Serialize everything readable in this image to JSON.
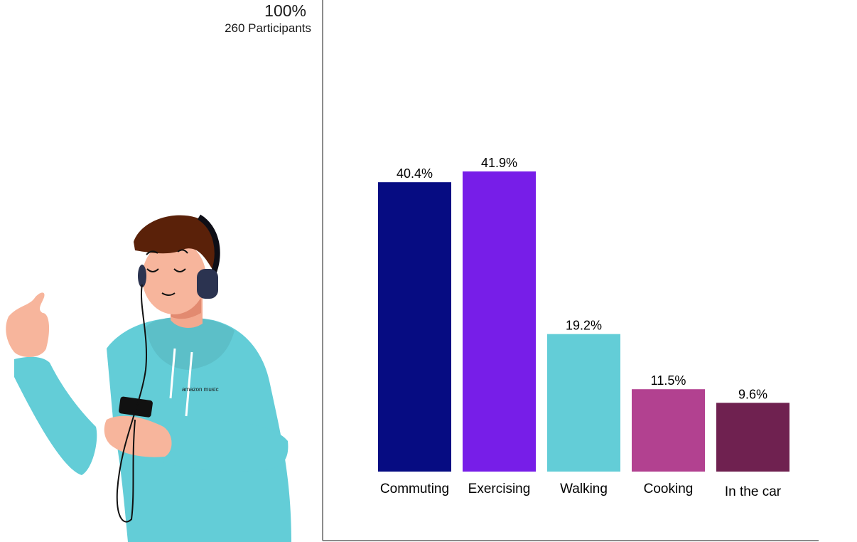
{
  "chart_data": {
    "type": "bar",
    "ymax_label": "100%",
    "ymax_sublabel": "260 Participants",
    "ylim": [
      0,
      100
    ],
    "categories": [
      "Commuting",
      "Exercising",
      "Walking",
      "Cooking",
      "In the car"
    ],
    "values": [
      40.4,
      41.9,
      19.2,
      11.5,
      9.6
    ],
    "value_labels": [
      "40.4%",
      "41.9%",
      "19.2%",
      "11.5%",
      "9.6%"
    ],
    "colors": [
      "#060c82",
      "#771ee8",
      "#63cdd7",
      "#b24190",
      "#6f2150"
    ]
  },
  "illustration": {
    "logo_text": "amazon music"
  }
}
